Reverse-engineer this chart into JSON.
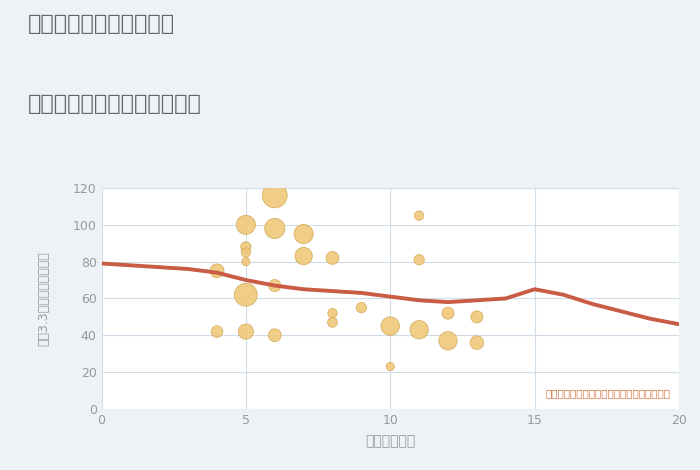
{
  "title_line1": "三重県四日市市高見台の",
  "title_line2": "駅距離別中古マンション価格",
  "xlabel": "駅距離（分）",
  "ylabel": "坪（3.3㎡）単価（万円）",
  "annotation": "円の大きさは、取引のあった物件面積を示す",
  "xlim": [
    0,
    20
  ],
  "ylim": [
    0,
    120
  ],
  "xticks": [
    0,
    5,
    10,
    15,
    20
  ],
  "yticks": [
    0,
    20,
    40,
    60,
    80,
    100,
    120
  ],
  "background_color": "#eef2f6",
  "plot_bg_color": "#ffffff",
  "bubble_color": "#f0c878",
  "bubble_edge_color": "#d4a855",
  "line_color": "#c95c45",
  "title_color": "#666666",
  "annotation_color": "#d07040",
  "grid_color": "#d0dce8",
  "tick_color": "#999999",
  "scatter_x": [
    4,
    4,
    5,
    5,
    5,
    5,
    5,
    5,
    6,
    6,
    6,
    6,
    7,
    7,
    8,
    8,
    8,
    9,
    10,
    10,
    11,
    11,
    11,
    12,
    12,
    13,
    13
  ],
  "scatter_y": [
    75,
    42,
    100,
    88,
    85,
    80,
    62,
    42,
    116,
    98,
    67,
    40,
    95,
    83,
    82,
    52,
    47,
    55,
    23,
    45,
    105,
    81,
    43,
    52,
    37,
    50,
    36
  ],
  "scatter_size": [
    100,
    70,
    190,
    55,
    45,
    35,
    270,
    120,
    320,
    210,
    75,
    85,
    190,
    155,
    85,
    45,
    50,
    55,
    35,
    175,
    45,
    55,
    175,
    75,
    175,
    75,
    95
  ],
  "line_x": [
    0,
    1,
    2,
    3,
    4,
    5,
    6,
    7,
    8,
    9,
    10,
    11,
    12,
    13,
    14,
    15,
    16,
    17,
    18,
    19,
    20
  ],
  "line_y": [
    79,
    78,
    77,
    76,
    74,
    70,
    67,
    65,
    64,
    63,
    61,
    59,
    58,
    59,
    60,
    65,
    62,
    57,
    53,
    49,
    46
  ]
}
